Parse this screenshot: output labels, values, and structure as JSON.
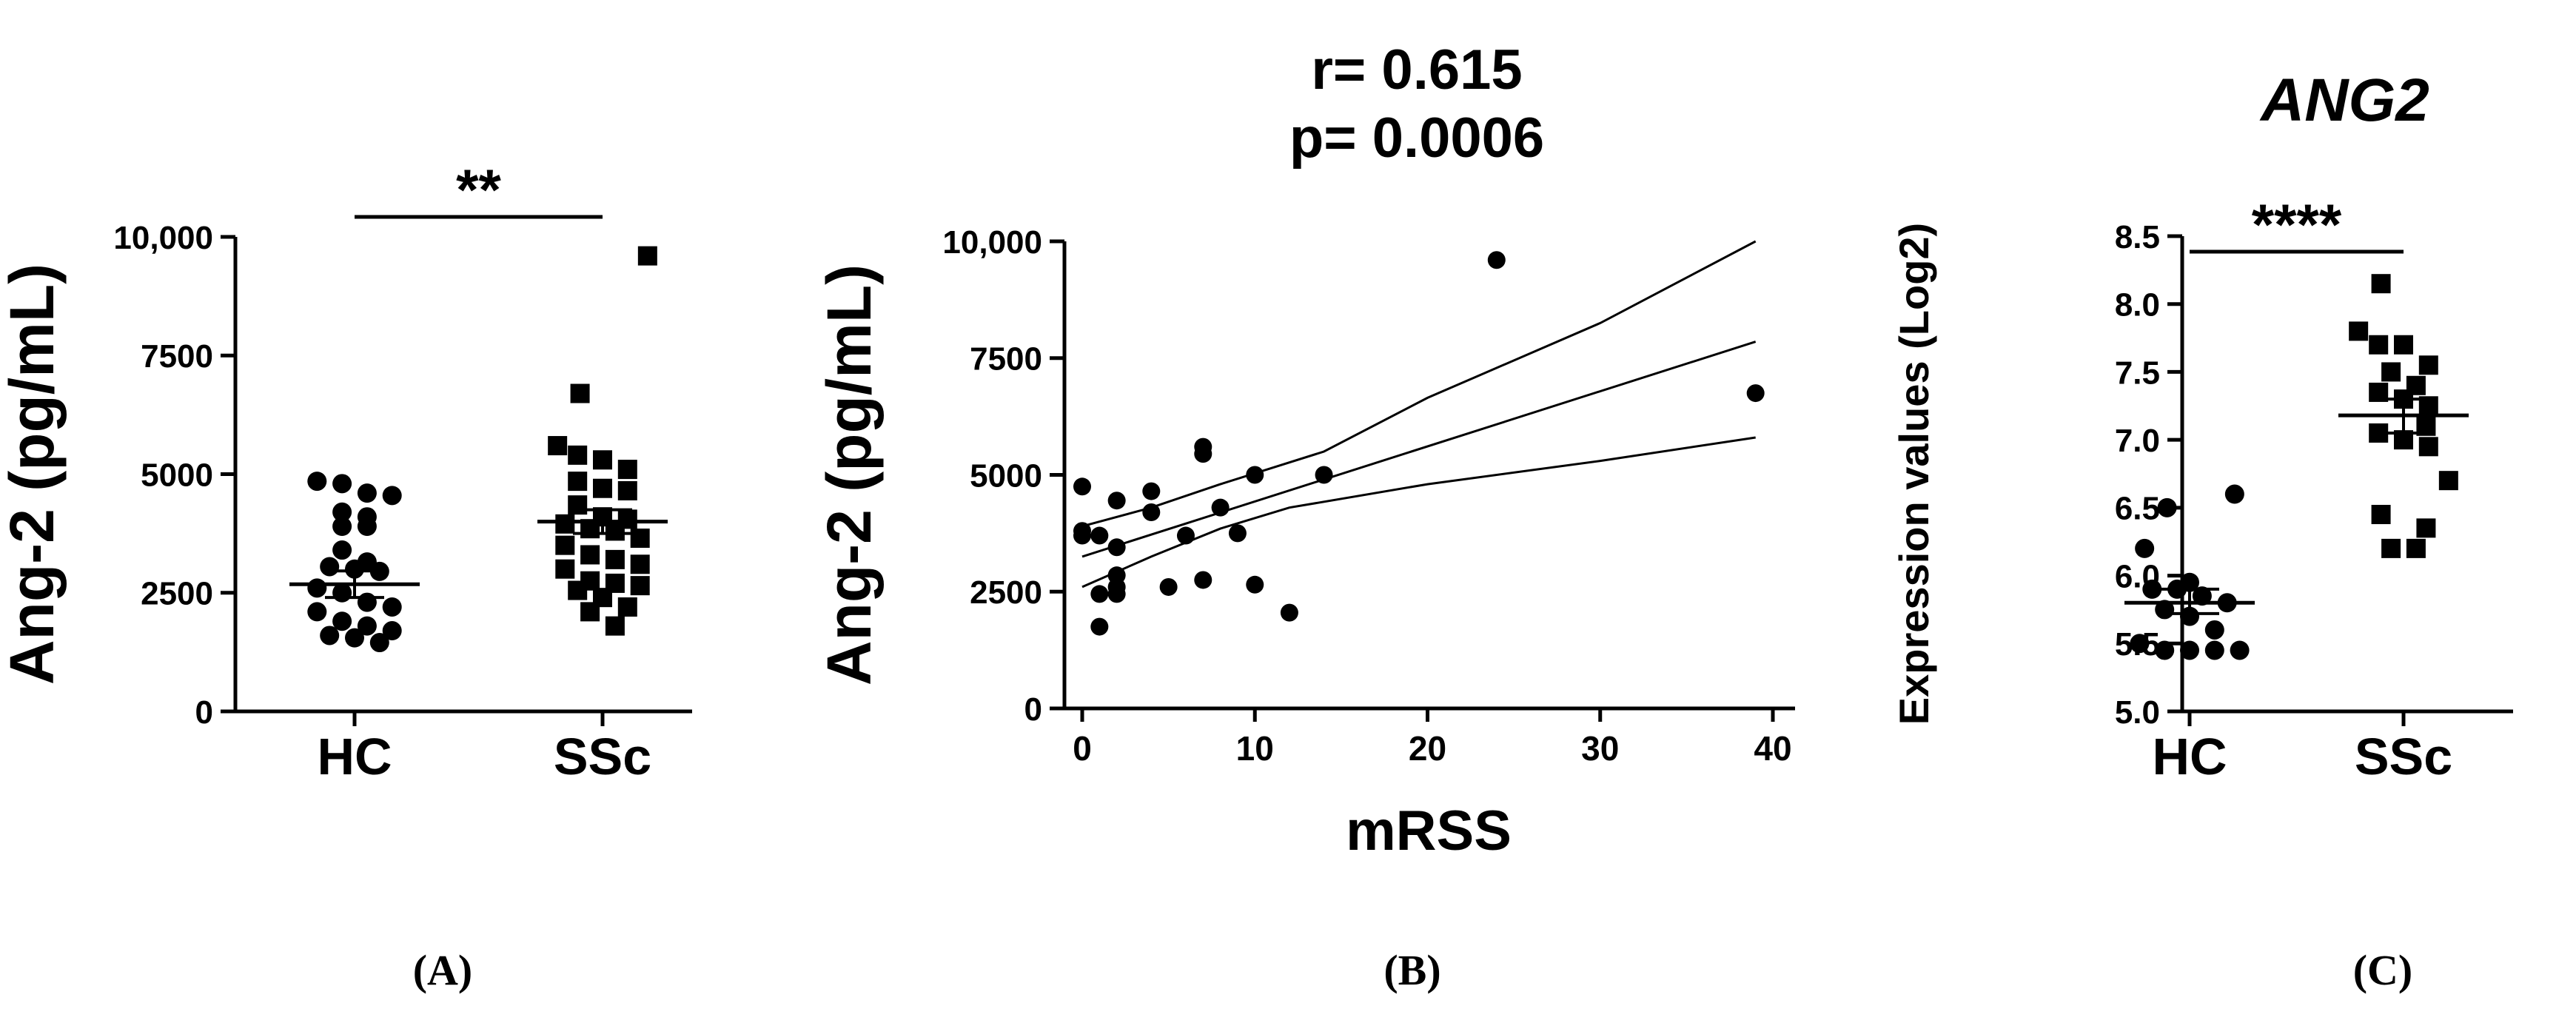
{
  "chart_data": [
    {
      "type": "scatter",
      "panel_label": "(A)",
      "ylabel": "Ang-2 (pg/mL)",
      "ylim": [
        0,
        10000
      ],
      "yticks": [
        "0",
        "2500",
        "5000",
        "7500",
        "10,000"
      ],
      "categories": [
        "HC",
        "SSc"
      ],
      "significance": "**",
      "groups": [
        {
          "name": "HC",
          "marker": "circle",
          "mean": 2680,
          "sem_low": 2400,
          "sem_high": 2960,
          "values": [
            4850,
            4550,
            4800,
            4600,
            4200,
            4100,
            3900,
            3900,
            3400,
            3150,
            3050,
            3000,
            2950,
            2600,
            2500,
            2300,
            2200,
            2100,
            1900,
            1800,
            1700,
            1600,
            1550,
            1450
          ]
        },
        {
          "name": "SSc",
          "marker": "square",
          "mean": 4000,
          "sem_low": 3750,
          "sem_high": 4250,
          "values": [
            9600,
            6700,
            5600,
            5400,
            5300,
            5100,
            4850,
            4700,
            4650,
            4350,
            4100,
            4050,
            3950,
            3850,
            3800,
            3650,
            3500,
            3300,
            3200,
            3100,
            3000,
            2750,
            2700,
            2650,
            2550,
            2400,
            2200,
            2100,
            1800
          ]
        }
      ]
    },
    {
      "type": "scatter",
      "panel_label": "(B)",
      "annotation_r": "r=  0.615",
      "annotation_p": "p= 0.0006",
      "xlabel": "mRSS",
      "ylabel": "Ang-2 (pg/mL)",
      "xlim": [
        0,
        40
      ],
      "ylim": [
        0,
        10000
      ],
      "xticks": [
        "0",
        "10",
        "20",
        "30",
        "40"
      ],
      "yticks": [
        "0",
        "2500",
        "5000",
        "7500",
        "10,000"
      ],
      "points": [
        [
          0,
          4750
        ],
        [
          0,
          3700
        ],
        [
          0,
          3800
        ],
        [
          1,
          3700
        ],
        [
          1,
          2450
        ],
        [
          1,
          1750
        ],
        [
          2,
          4450
        ],
        [
          2,
          3450
        ],
        [
          2,
          2850
        ],
        [
          2,
          2600
        ],
        [
          2,
          2450
        ],
        [
          4,
          4650
        ],
        [
          4,
          4200
        ],
        [
          5,
          2600
        ],
        [
          6,
          3700
        ],
        [
          7,
          5600
        ],
        [
          7,
          5450
        ],
        [
          7,
          2750
        ],
        [
          8,
          4300
        ],
        [
          9,
          3750
        ],
        [
          10,
          5000
        ],
        [
          10,
          2650
        ],
        [
          12,
          2050
        ],
        [
          14,
          5000
        ],
        [
          24,
          9600
        ],
        [
          39,
          6750
        ]
      ],
      "regression": {
        "slope": 118,
        "intercept": 3250
      },
      "ci_lower": [
        [
          0,
          2600
        ],
        [
          4,
          3250
        ],
        [
          8,
          3850
        ],
        [
          12,
          4300
        ],
        [
          20,
          4800
        ],
        [
          30,
          5300
        ],
        [
          39,
          5800
        ]
      ],
      "ci_upper": [
        [
          0,
          3900
        ],
        [
          4,
          4300
        ],
        [
          8,
          4800
        ],
        [
          14,
          5500
        ],
        [
          20,
          6650
        ],
        [
          30,
          8250
        ],
        [
          39,
          10000
        ]
      ]
    },
    {
      "type": "scatter",
      "panel_label": "(C)",
      "title": "ANG2",
      "ylabel": "Expression values (Log2)",
      "ylim": [
        5.0,
        8.5
      ],
      "yticks": [
        "5.0",
        "5.5",
        "6.0",
        "6.5",
        "7.0",
        "7.5",
        "8.0",
        "8.5"
      ],
      "categories": [
        "HC",
        "SSc"
      ],
      "significance": "****",
      "groups": [
        {
          "name": "HC",
          "marker": "circle",
          "mean": 5.8,
          "sem_low": 5.72,
          "sem_high": 5.9,
          "values": [
            6.6,
            6.5,
            6.2,
            5.95,
            5.9,
            5.9,
            5.85,
            5.8,
            5.75,
            5.7,
            5.6,
            5.5,
            5.45,
            5.45,
            5.45,
            5.45
          ]
        },
        {
          "name": "SSc",
          "marker": "square",
          "mean": 7.18,
          "sem_low": 7.05,
          "sem_high": 7.3,
          "values": [
            8.15,
            7.8,
            7.7,
            7.7,
            7.55,
            7.5,
            7.4,
            7.35,
            7.3,
            7.25,
            7.1,
            7.05,
            7.0,
            6.95,
            6.7,
            6.45,
            6.35,
            6.2,
            6.2
          ]
        }
      ]
    }
  ]
}
